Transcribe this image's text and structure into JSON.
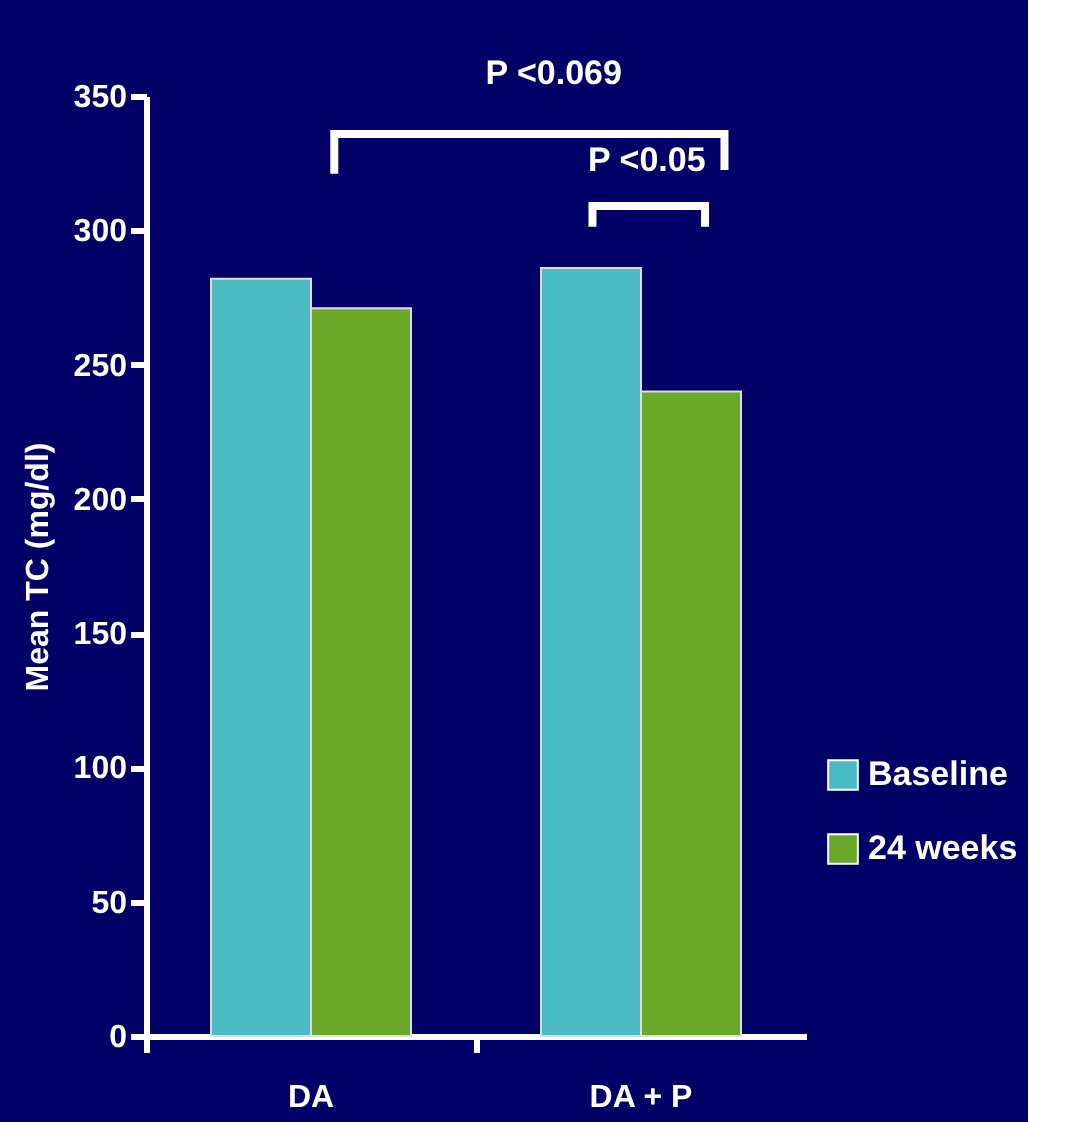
{
  "chart_data": {
    "type": "bar",
    "ylabel": "Mean TC (mg/dl)",
    "categories": [
      "DA",
      "DA + P"
    ],
    "series": [
      {
        "name": "Baseline",
        "color": "#4cbcc4",
        "values": [
          282,
          286
        ]
      },
      {
        "name": "24 weeks",
        "color": "#6aa82a",
        "values": [
          271,
          240
        ]
      }
    ],
    "ylim": [
      0,
      350
    ],
    "yticks": [
      0,
      50,
      100,
      150,
      200,
      250,
      300,
      350
    ],
    "grid": false,
    "legend": "right",
    "annotations": [
      "P <0.069",
      "P <0.05"
    ]
  }
}
